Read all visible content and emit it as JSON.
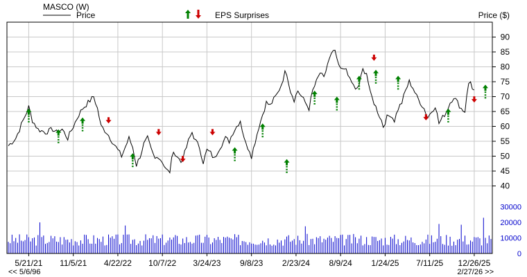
{
  "chart_data": {
    "type": "line",
    "header": {
      "ticker_label": "MASCO (W)",
      "legend_price": "Price",
      "legend_eps": "EPS Surprises",
      "ylabel": "Price ($)"
    },
    "price_axis": {
      "ylim": [
        35,
        95
      ],
      "ticks": [
        40,
        45,
        50,
        55,
        60,
        65,
        70,
        75,
        80,
        85,
        90
      ]
    },
    "volume_axis": {
      "ylim": [
        0,
        33000
      ],
      "ticks": [
        0,
        10000,
        20000,
        30000
      ]
    },
    "x_tick_labels": [
      "5/21/21",
      "11/5/21",
      "4/22/22",
      "10/7/22",
      "3/24/23",
      "9/8/23",
      "2/23/24",
      "8/9/24",
      "1/24/25",
      "7/11/25",
      "12/26/25"
    ],
    "x_tick_weeks": [
      11,
      35,
      59,
      83,
      107,
      131,
      155,
      179,
      203,
      227,
      251
    ],
    "total_weeks": 261,
    "nav": {
      "back_label": "<< 5/6/96",
      "forward_label": "2/27/26 >>"
    },
    "price_keypoints": [
      [
        0,
        53.5
      ],
      [
        4,
        56
      ],
      [
        8,
        62
      ],
      [
        11,
        66.5
      ],
      [
        13,
        62
      ],
      [
        16,
        59
      ],
      [
        20,
        58
      ],
      [
        24,
        59
      ],
      [
        26,
        58
      ],
      [
        29,
        59
      ],
      [
        32,
        56
      ],
      [
        35,
        60
      ],
      [
        38,
        64
      ],
      [
        40,
        66
      ],
      [
        43,
        68
      ],
      [
        46,
        70
      ],
      [
        48,
        66
      ],
      [
        50,
        60
      ],
      [
        53,
        58
      ],
      [
        56,
        55
      ],
      [
        59,
        52
      ],
      [
        61,
        50
      ],
      [
        63,
        53
      ],
      [
        65,
        56
      ],
      [
        67,
        53
      ],
      [
        69,
        47
      ],
      [
        71,
        50
      ],
      [
        73,
        54
      ],
      [
        75,
        56
      ],
      [
        77,
        52
      ],
      [
        79,
        49
      ],
      [
        81,
        50
      ],
      [
        83,
        48
      ],
      [
        85,
        46
      ],
      [
        87,
        44
      ],
      [
        88,
        50
      ],
      [
        90,
        51
      ],
      [
        93,
        48
      ],
      [
        95,
        51
      ],
      [
        97,
        55
      ],
      [
        99,
        58
      ],
      [
        101,
        55
      ],
      [
        103,
        53
      ],
      [
        105,
        48
      ],
      [
        107,
        52
      ],
      [
        109,
        51
      ],
      [
        111,
        49
      ],
      [
        113,
        52
      ],
      [
        115,
        54
      ],
      [
        117,
        56
      ],
      [
        119,
        55
      ],
      [
        121,
        58
      ],
      [
        123,
        60
      ],
      [
        125,
        62
      ],
      [
        126,
        59
      ],
      [
        128,
        54
      ],
      [
        130,
        52
      ],
      [
        131,
        50
      ],
      [
        133,
        55
      ],
      [
        135,
        60
      ],
      [
        137,
        64
      ],
      [
        139,
        68
      ],
      [
        141,
        67
      ],
      [
        143,
        69
      ],
      [
        145,
        71
      ],
      [
        147,
        74
      ],
      [
        149,
        78
      ],
      [
        150,
        78
      ],
      [
        152,
        72
      ],
      [
        154,
        69
      ],
      [
        156,
        72
      ],
      [
        158,
        70
      ],
      [
        160,
        68
      ],
      [
        162,
        66
      ],
      [
        164,
        72
      ],
      [
        166,
        75
      ],
      [
        168,
        78
      ],
      [
        170,
        76
      ],
      [
        172,
        81
      ],
      [
        174,
        84
      ],
      [
        176,
        85.5
      ],
      [
        177,
        82
      ],
      [
        179,
        79
      ],
      [
        181,
        80
      ],
      [
        183,
        77
      ],
      [
        185,
        75
      ],
      [
        187,
        72
      ],
      [
        189,
        74
      ],
      [
        191,
        79
      ],
      [
        193,
        78
      ],
      [
        195,
        71
      ],
      [
        197,
        68
      ],
      [
        199,
        65
      ],
      [
        201,
        62
      ],
      [
        202,
        60
      ],
      [
        204,
        63
      ],
      [
        206,
        64
      ],
      [
        208,
        62
      ],
      [
        210,
        66
      ],
      [
        212,
        68
      ],
      [
        214,
        72
      ],
      [
        216,
        75
      ],
      [
        218,
        73
      ],
      [
        220,
        70
      ],
      [
        222,
        68
      ],
      [
        224,
        66
      ],
      [
        226,
        63
      ],
      [
        228,
        65
      ],
      [
        230,
        67
      ],
      [
        232,
        61
      ],
      [
        234,
        63
      ],
      [
        236,
        65
      ],
      [
        238,
        68
      ],
      [
        240,
        70
      ],
      [
        242,
        68
      ],
      [
        244,
        66
      ],
      [
        246,
        65
      ],
      [
        247,
        71
      ],
      [
        248,
        74
      ],
      [
        249,
        75
      ],
      [
        250,
        73
      ],
      [
        251,
        72
      ]
    ],
    "eps_markers": [
      {
        "week": 11,
        "dir": "up",
        "price": 66
      },
      {
        "week": 27,
        "dir": "up",
        "price": 59
      },
      {
        "week": 40,
        "dir": "up",
        "price": 63
      },
      {
        "week": 54,
        "dir": "down",
        "price": 61
      },
      {
        "week": 67,
        "dir": "up",
        "price": 51
      },
      {
        "week": 81,
        "dir": "down",
        "price": 57
      },
      {
        "week": 94,
        "dir": "down",
        "price": 48
      },
      {
        "week": 110,
        "dir": "down",
        "price": 57
      },
      {
        "week": 122,
        "dir": "up",
        "price": 53
      },
      {
        "week": 137,
        "dir": "up",
        "price": 61
      },
      {
        "week": 150,
        "dir": "up",
        "price": 49
      },
      {
        "week": 165,
        "dir": "up",
        "price": 72
      },
      {
        "week": 177,
        "dir": "up",
        "price": 70
      },
      {
        "week": 189,
        "dir": "up",
        "price": 77
      },
      {
        "week": 197,
        "dir": "down",
        "price": 82
      },
      {
        "week": 198,
        "dir": "up",
        "price": 79
      },
      {
        "week": 210,
        "dir": "up",
        "price": 77
      },
      {
        "week": 225,
        "dir": "down",
        "price": 62
      },
      {
        "week": 237,
        "dir": "up",
        "price": 66
      },
      {
        "week": 251,
        "dir": "down",
        "price": 68
      },
      {
        "week": 257,
        "dir": "up",
        "price": 74
      }
    ],
    "volume_base": 9000,
    "volume_spikes": [
      {
        "week": 17,
        "value": 20000
      },
      {
        "week": 63,
        "value": 18000
      },
      {
        "week": 160,
        "value": 17500
      },
      {
        "week": 232,
        "value": 19000
      },
      {
        "week": 244,
        "value": 18500
      },
      {
        "week": 256,
        "value": 23000
      }
    ],
    "colors": {
      "price_line": "#000000",
      "volume_bar": "#0000cc",
      "eps_up": "#008000",
      "eps_down": "#cc0000",
      "grid": "#c8c8c8",
      "frame": "#000000",
      "volume_tick": "#0000cc"
    }
  }
}
